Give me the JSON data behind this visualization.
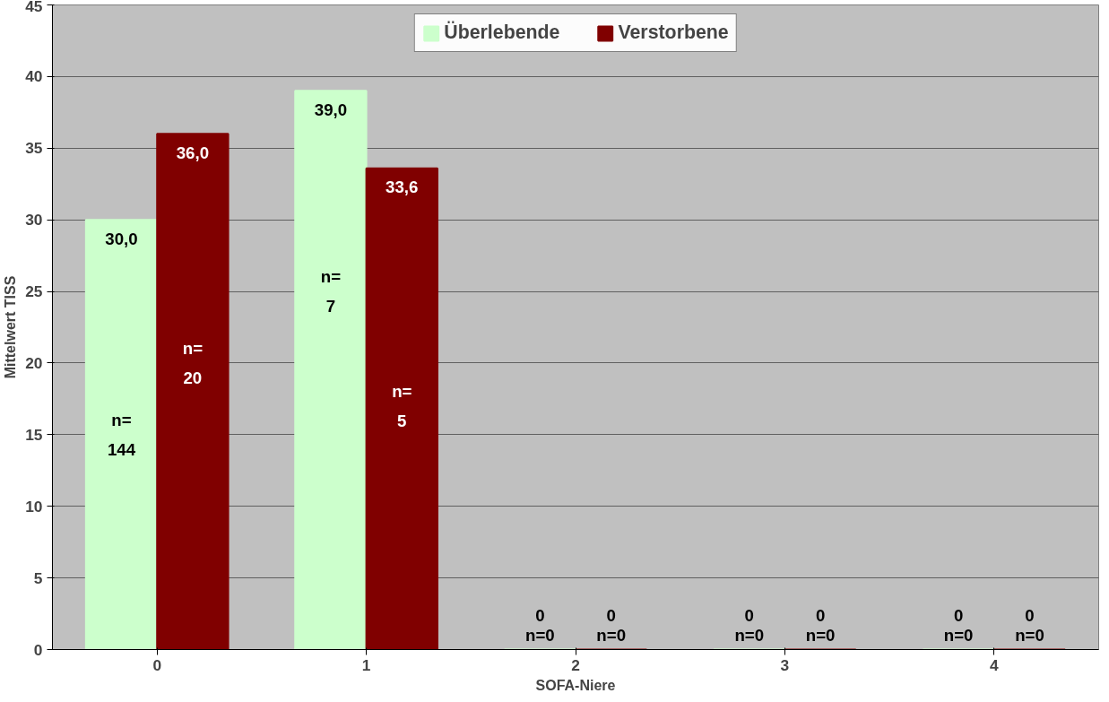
{
  "chart_data": {
    "type": "bar",
    "xlabel": "SOFA-Niere",
    "ylabel": "Mittelwert TISS",
    "categories": [
      "0",
      "1",
      "2",
      "3",
      "4"
    ],
    "series": [
      {
        "name": "Überlebende",
        "color": "#ccffcc",
        "values": [
          30.0,
          39.0,
          0,
          0,
          0
        ],
        "value_labels": [
          "30,0",
          "39,0",
          "0",
          "0",
          "0"
        ]
      },
      {
        "name": "Verstorbene",
        "color": "#800000",
        "values": [
          36.0,
          33.6,
          0,
          0,
          0
        ],
        "value_labels": [
          "36,0",
          "33,6",
          "0",
          "0",
          "0"
        ]
      }
    ],
    "ylim": [
      0,
      45
    ],
    "yticks": [
      0,
      5,
      10,
      15,
      20,
      25,
      30,
      35,
      40,
      45
    ],
    "grid": "y",
    "legend": "top",
    "annotations": [
      {
        "text": "n=\n144",
        "x": "0",
        "y": 15
      },
      {
        "text": "n=\n20",
        "x": "0",
        "y": 20
      },
      {
        "text": "n=\n7",
        "x": "1",
        "y": 25
      },
      {
        "text": "n=\n5",
        "x": "1",
        "y": 17
      },
      {
        "text": "n=0",
        "x": "2",
        "y": 0
      },
      {
        "text": "n=0",
        "x": "2",
        "y": 0
      },
      {
        "text": "n=0",
        "x": "3",
        "y": 0
      },
      {
        "text": "n=0",
        "x": "3",
        "y": 0
      },
      {
        "text": "n=0",
        "x": "4",
        "y": 0
      },
      {
        "text": "n=0",
        "x": "4",
        "y": 0
      }
    ]
  }
}
